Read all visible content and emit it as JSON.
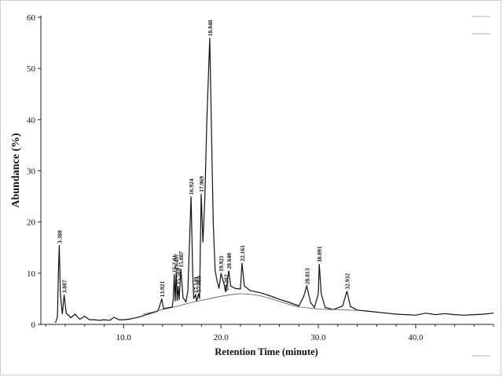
{
  "chart_data": {
    "type": "line",
    "title": "",
    "xlabel": "Retention Time (minute)",
    "ylabel": "Abundance (%)",
    "xlim": [
      1.5,
      48.0
    ],
    "ylim": [
      0,
      60
    ],
    "x_ticks": [
      {
        "value": 10,
        "label": "10.0"
      },
      {
        "value": 20,
        "label": "20.0"
      },
      {
        "value": 30,
        "label": "30.0"
      },
      {
        "value": 40,
        "label": "40.0"
      }
    ],
    "y_ticks": [
      {
        "value": 0,
        "label": "0"
      },
      {
        "value": 10,
        "label": "10"
      },
      {
        "value": 20,
        "label": "20"
      },
      {
        "value": 30,
        "label": "30"
      },
      {
        "value": 40,
        "label": "40"
      },
      {
        "value": 50,
        "label": "50"
      },
      {
        "value": 60,
        "label": "60"
      }
    ],
    "grid": false,
    "series": [
      {
        "points": [
          [
            3.0,
            0.3
          ],
          [
            3.2,
            1.5
          ],
          [
            3.3,
            10
          ],
          [
            3.388,
            15.5
          ],
          [
            3.5,
            6
          ],
          [
            3.7,
            2
          ],
          [
            3.887,
            5.8
          ],
          [
            4.1,
            2.2
          ],
          [
            4.6,
            1.3
          ],
          [
            5.0,
            2.0
          ],
          [
            5.5,
            1.0
          ],
          [
            6.0,
            1.6
          ],
          [
            6.5,
            0.9
          ],
          [
            7.0,
            0.9
          ],
          [
            7.5,
            0.8
          ],
          [
            8.0,
            0.9
          ],
          [
            8.6,
            0.8
          ],
          [
            9.0,
            1.4
          ],
          [
            9.5,
            0.9
          ],
          [
            10.0,
            0.9
          ],
          [
            10.5,
            1.0
          ],
          [
            11.0,
            1.2
          ],
          [
            11.5,
            1.4
          ],
          [
            12.0,
            1.7
          ],
          [
            12.5,
            2.0
          ],
          [
            13.0,
            2.3
          ],
          [
            13.5,
            2.6
          ],
          [
            13.6,
            3.0
          ],
          [
            13.921,
            5.0
          ],
          [
            14.1,
            3.1
          ],
          [
            14.5,
            3.2
          ],
          [
            15.0,
            3.4
          ],
          [
            15.1,
            5.0
          ],
          [
            15.2,
            9.8
          ],
          [
            15.3,
            4.5
          ],
          [
            15.4,
            10.3
          ],
          [
            15.5,
            4.6
          ],
          [
            15.6,
            7.5
          ],
          [
            15.7,
            4.8
          ],
          [
            15.887,
            10.8
          ],
          [
            16.1,
            5.2
          ],
          [
            16.4,
            4.4
          ],
          [
            16.6,
            6.5
          ],
          [
            16.75,
            15.0
          ],
          [
            16.924,
            25.0
          ],
          [
            17.1,
            10.0
          ],
          [
            17.2,
            5.0
          ],
          [
            17.4,
            5.8
          ],
          [
            17.5,
            4.5
          ],
          [
            17.7,
            6.0
          ],
          [
            17.8,
            5.0
          ],
          [
            17.969,
            25.5
          ],
          [
            18.15,
            16.0
          ],
          [
            18.35,
            25.0
          ],
          [
            18.55,
            40.0
          ],
          [
            18.848,
            56.0
          ],
          [
            19.0,
            40.0
          ],
          [
            19.2,
            20.0
          ],
          [
            19.4,
            10.5
          ],
          [
            19.6,
            8.5
          ],
          [
            19.8,
            7.0
          ],
          [
            20.0,
            10.0
          ],
          [
            20.3,
            8.0
          ],
          [
            20.5,
            6.3
          ],
          [
            20.8,
            10.5
          ],
          [
            21.0,
            7.5
          ],
          [
            21.5,
            7.0
          ],
          [
            22.0,
            6.9
          ],
          [
            22.161,
            12.0
          ],
          [
            22.4,
            7.5
          ],
          [
            23.0,
            6.6
          ],
          [
            24.0,
            6.2
          ],
          [
            25.0,
            5.6
          ],
          [
            26.0,
            4.9
          ],
          [
            27.0,
            4.3
          ],
          [
            28.0,
            3.6
          ],
          [
            28.5,
            5.5
          ],
          [
            28.813,
            7.5
          ],
          [
            29.2,
            4.3
          ],
          [
            29.6,
            3.3
          ],
          [
            30.0,
            6.0
          ],
          [
            30.091,
            11.8
          ],
          [
            30.3,
            6.0
          ],
          [
            30.7,
            3.3
          ],
          [
            31.5,
            2.9
          ],
          [
            32.0,
            3.2
          ],
          [
            32.5,
            3.6
          ],
          [
            32.932,
            6.5
          ],
          [
            33.3,
            3.5
          ],
          [
            34.0,
            2.8
          ],
          [
            35.0,
            2.6
          ],
          [
            36.0,
            2.4
          ],
          [
            37.0,
            2.2
          ],
          [
            38.0,
            2.0
          ],
          [
            39.0,
            1.9
          ],
          [
            40.0,
            1.8
          ],
          [
            41.0,
            2.2
          ],
          [
            42.0,
            1.9
          ],
          [
            43.0,
            2.1
          ],
          [
            44.0,
            1.9
          ],
          [
            45.0,
            1.8
          ],
          [
            46.0,
            1.9
          ],
          [
            47.0,
            2.0
          ],
          [
            48.0,
            2.2
          ]
        ]
      },
      {
        "points": [
          [
            12.0,
            2.0
          ],
          [
            13.0,
            2.4
          ],
          [
            14.0,
            2.9
          ],
          [
            15.0,
            3.3
          ],
          [
            16.0,
            3.8
          ],
          [
            17.0,
            4.3
          ],
          [
            18.0,
            4.7
          ],
          [
            19.0,
            5.1
          ],
          [
            20.0,
            5.5
          ],
          [
            21.0,
            5.8
          ],
          [
            22.0,
            6.0
          ],
          [
            23.0,
            5.9
          ],
          [
            24.0,
            5.6
          ],
          [
            25.0,
            5.1
          ],
          [
            26.0,
            4.5
          ],
          [
            27.0,
            3.9
          ],
          [
            28.0,
            3.4
          ],
          [
            29.0,
            3.2
          ],
          [
            30.0,
            3.0
          ],
          [
            31.0,
            2.9
          ],
          [
            32.0,
            2.9
          ],
          [
            33.0,
            2.8
          ],
          [
            34.0,
            2.7
          ]
        ]
      }
    ],
    "peak_labels": [
      {
        "x": 3.388,
        "y": 15.5,
        "text": "3.388"
      },
      {
        "x": 3.887,
        "y": 5.8,
        "text": "3.887"
      },
      {
        "x": 13.921,
        "y": 5.0,
        "text": "13.921"
      },
      {
        "x": 15.2,
        "y": 9.8,
        "text": "15.2 81"
      },
      {
        "x": 15.4,
        "y": 10.3,
        "text": "15.437"
      },
      {
        "x": 15.6,
        "y": 7.5,
        "text": "15.569"
      },
      {
        "x": 15.887,
        "y": 10.8,
        "text": "15.887"
      },
      {
        "x": 16.924,
        "y": 25.0,
        "text": "16.924"
      },
      {
        "x": 17.4,
        "y": 5.8,
        "text": "17.149"
      },
      {
        "x": 17.7,
        "y": 6.0,
        "text": "17.069"
      },
      {
        "x": 17.969,
        "y": 25.5,
        "text": "17.969"
      },
      {
        "x": 18.848,
        "y": 56.0,
        "text": "18.848"
      },
      {
        "x": 20.0,
        "y": 10.0,
        "text": "19.921"
      },
      {
        "x": 20.5,
        "y": 6.3,
        "text": "20.282"
      },
      {
        "x": 20.8,
        "y": 10.5,
        "text": "20.640"
      },
      {
        "x": 22.161,
        "y": 12.0,
        "text": "22.161"
      },
      {
        "x": 28.813,
        "y": 7.5,
        "text": "28.813"
      },
      {
        "x": 30.091,
        "y": 11.8,
        "text": "30.091"
      },
      {
        "x": 32.932,
        "y": 6.5,
        "text": "32.932"
      }
    ]
  }
}
